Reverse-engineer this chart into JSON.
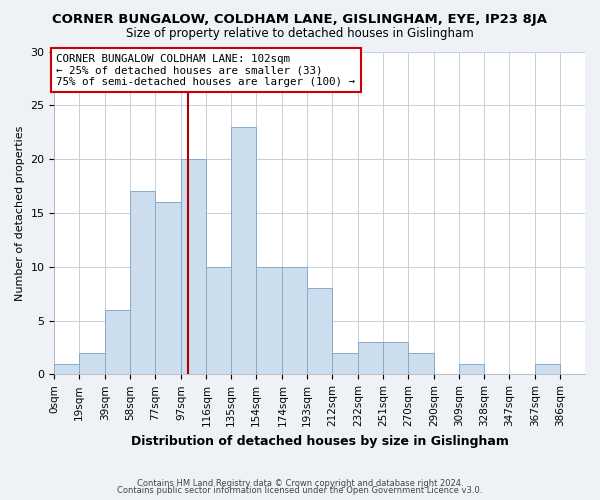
{
  "title": "CORNER BUNGALOW, COLDHAM LANE, GISLINGHAM, EYE, IP23 8JA",
  "subtitle": "Size of property relative to detached houses in Gislingham",
  "xlabel": "Distribution of detached houses by size in Gislingham",
  "ylabel": "Number of detached properties",
  "bar_color": "#ccdded",
  "bar_edge_color": "#88aac8",
  "bin_edges": [
    0,
    19,
    39,
    58,
    77,
    97,
    116,
    135,
    154,
    174,
    193,
    212,
    232,
    251,
    270,
    290,
    309,
    328,
    347,
    367,
    386
  ],
  "counts": [
    1,
    2,
    6,
    17,
    16,
    20,
    10,
    23,
    10,
    10,
    8,
    2,
    3,
    3,
    2,
    0,
    1,
    0,
    0,
    1
  ],
  "xlim": [
    0,
    405
  ],
  "ylim": [
    0,
    30
  ],
  "yticks": [
    0,
    5,
    10,
    15,
    20,
    25,
    30
  ],
  "xtick_labels": [
    "0sqm",
    "19sqm",
    "39sqm",
    "58sqm",
    "77sqm",
    "97sqm",
    "116sqm",
    "135sqm",
    "154sqm",
    "174sqm",
    "193sqm",
    "212sqm",
    "232sqm",
    "251sqm",
    "270sqm",
    "290sqm",
    "309sqm",
    "328sqm",
    "347sqm",
    "367sqm",
    "386sqm"
  ],
  "vline_x": 102,
  "vline_color": "#aa0000",
  "annotation_line1": "CORNER BUNGALOW COLDHAM LANE: 102sqm",
  "annotation_line2": "← 25% of detached houses are smaller (33)",
  "annotation_line3": "75% of semi-detached houses are larger (100) →",
  "footer1": "Contains HM Land Registry data © Crown copyright and database right 2024.",
  "footer2": "Contains public sector information licensed under the Open Government Licence v3.0.",
  "background_color": "#eef2f7",
  "plot_bg_color": "#ffffff",
  "grid_color": "#c5d0dc"
}
